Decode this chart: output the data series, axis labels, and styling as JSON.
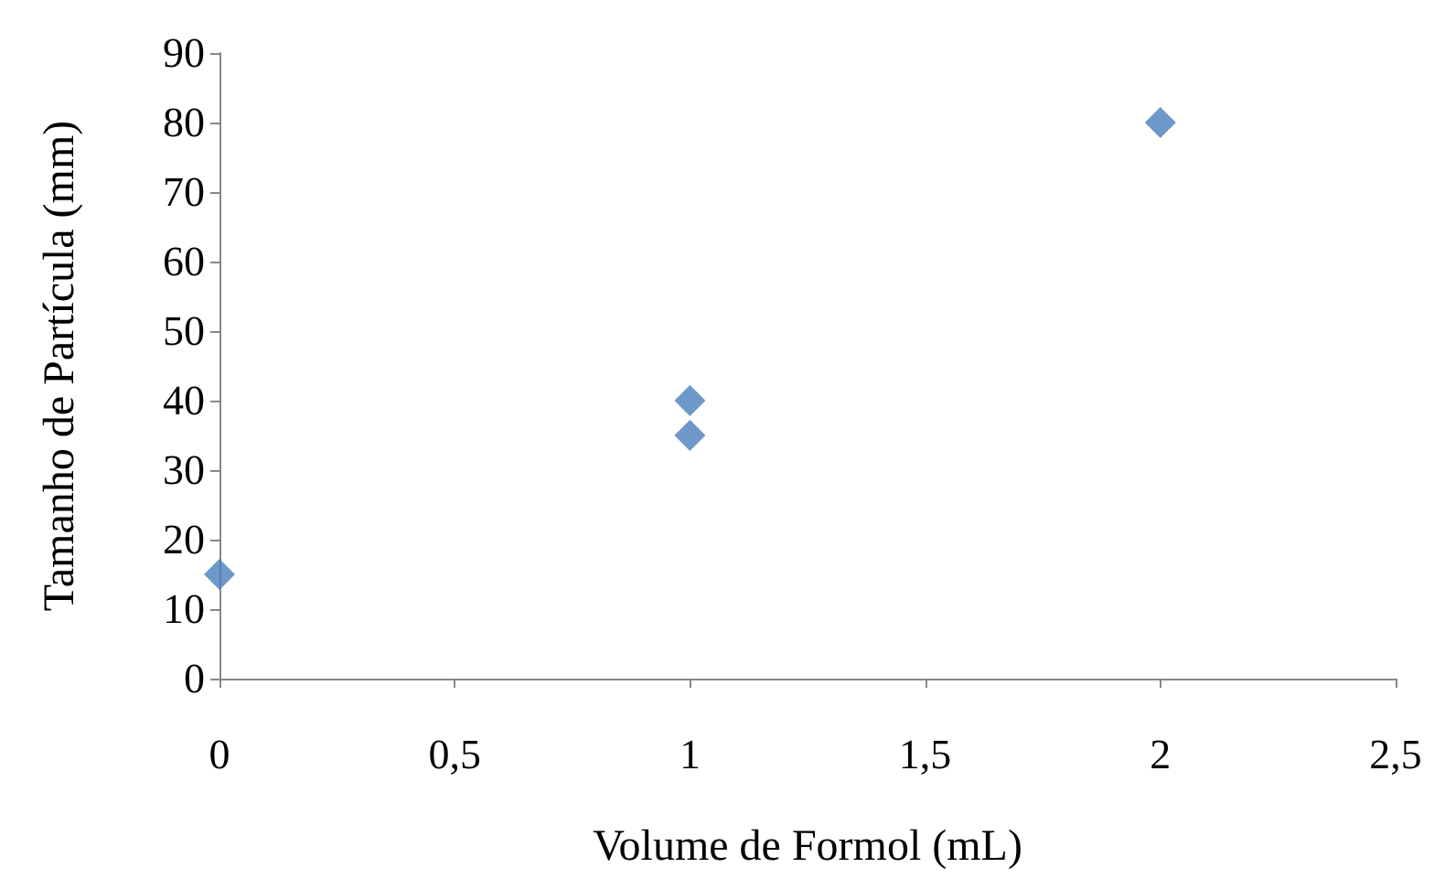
{
  "chart_data": {
    "type": "scatter",
    "xlabel": "Volume de Formol (mL)",
    "ylabel": "Tamanho de Partícula (mm)",
    "x": [
      0,
      1,
      1,
      2
    ],
    "series": [
      {
        "color": "#4a7ebb",
        "values": [
          15,
          40,
          35,
          80
        ]
      }
    ],
    "xlim": [
      0,
      2.5
    ],
    "xticks": [
      0,
      {
        "value": 0.5,
        "label": "0,5"
      },
      1,
      {
        "value": 1.5,
        "label": "1,5"
      },
      2,
      {
        "value": 2.5,
        "label": "2,5"
      }
    ],
    "ylim": [
      0,
      90
    ],
    "yticks": [
      0,
      10,
      20,
      30,
      40,
      50,
      60,
      70,
      80,
      90
    ],
    "grid": false,
    "marker": "diamond"
  }
}
